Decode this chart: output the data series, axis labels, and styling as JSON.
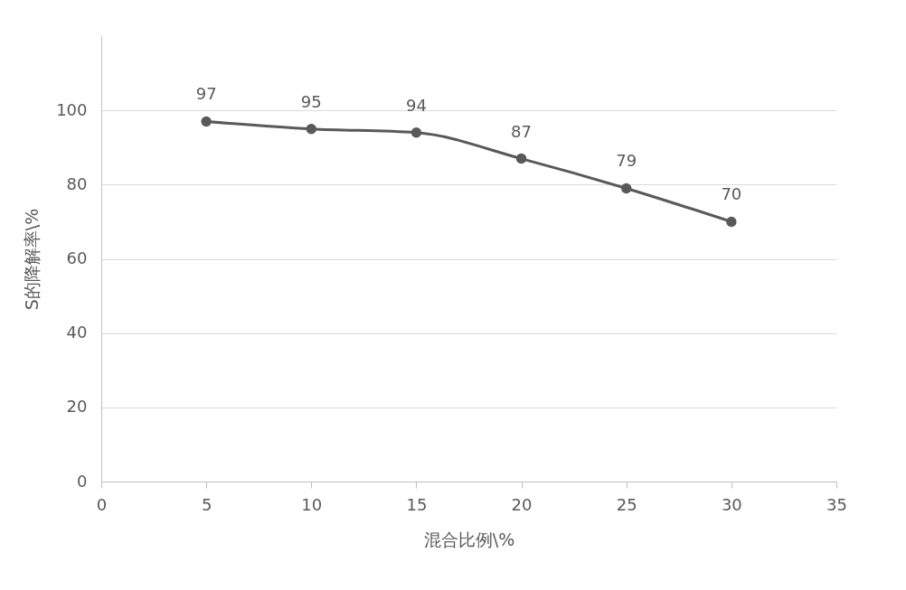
{
  "chart_data": {
    "type": "line",
    "xlabel": "混合比例\\%",
    "ylabel": "S的降解率\\%",
    "x": [
      5,
      10,
      15,
      20,
      25,
      30
    ],
    "series": [
      {
        "color": "#595959",
        "values": [
          97,
          95,
          94,
          87,
          79,
          70
        ]
      }
    ],
    "xlim": [
      0,
      35
    ],
    "xticks": [
      0,
      5,
      10,
      15,
      20,
      25,
      30,
      35
    ],
    "ylim": [
      0,
      120
    ],
    "yticks": [
      0,
      20,
      40,
      60,
      80,
      100
    ],
    "grid": "y",
    "marker": "circle",
    "line_style": "solid",
    "data_labels": true
  }
}
